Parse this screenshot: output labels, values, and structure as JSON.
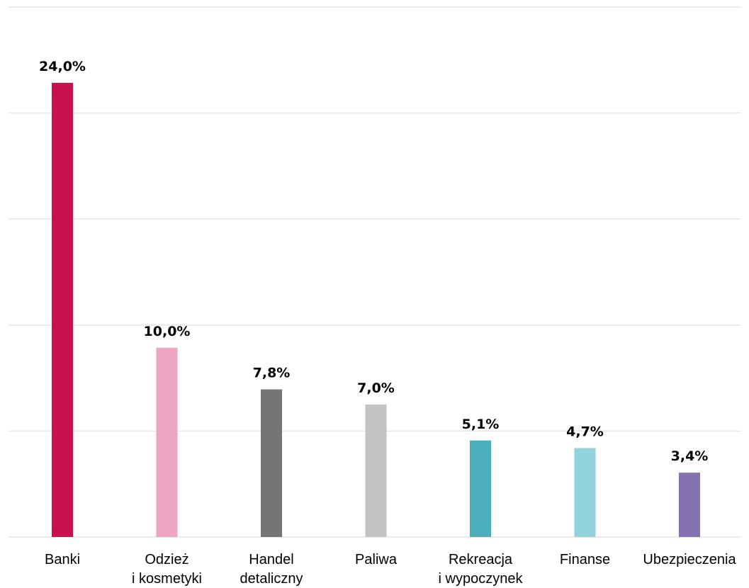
{
  "chart_data": {
    "type": "bar",
    "categories": [
      [
        "Banki"
      ],
      [
        "Odzież",
        "i kosmetyki"
      ],
      [
        "Handel",
        "detaliczny"
      ],
      [
        "Paliwa"
      ],
      [
        "Rekreacja",
        "i wypoczynek"
      ],
      [
        "Finanse"
      ],
      [
        "Ubezpieczenia"
      ]
    ],
    "values": [
      24.0,
      10.0,
      7.8,
      7.0,
      5.1,
      4.7,
      3.4
    ],
    "value_labels": [
      "24,0%",
      "10,0%",
      "7,8%",
      "7,0%",
      "5,1%",
      "4,7%",
      "3,4%"
    ],
    "colors": [
      "#c8114f",
      "#eea5c3",
      "#757575",
      "#c3c3c3",
      "#4aafbb",
      "#92d2db",
      "#8571b1"
    ],
    "ylim": [
      0,
      28
    ],
    "gridline_step": 5.6,
    "grid": true,
    "title": "",
    "xlabel": "",
    "ylabel": ""
  }
}
